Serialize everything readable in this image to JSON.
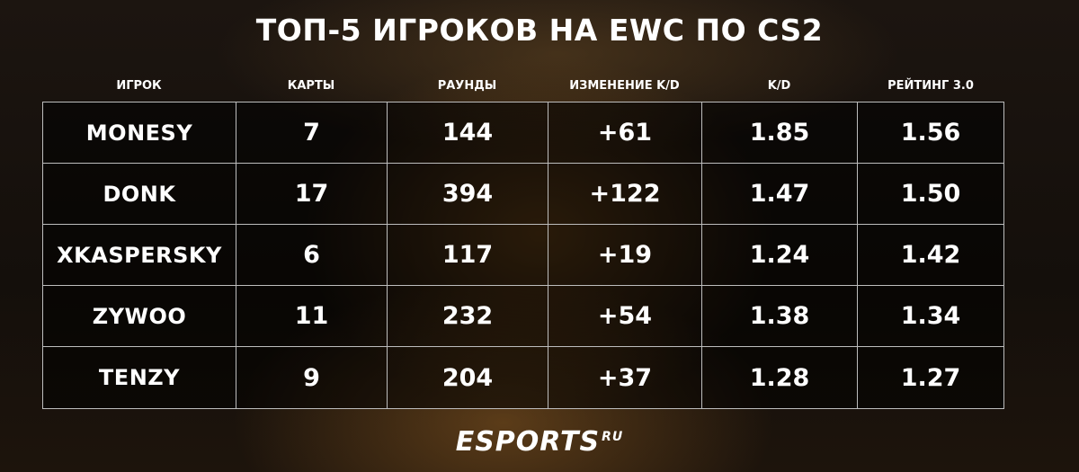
{
  "title": "ТОП-5 ИГРОКОВ НА EWC ПО CS2",
  "table": {
    "headers": [
      "ИГРОК",
      "КАРТЫ",
      "РАУНДЫ",
      "ИЗМЕНЕНИЕ K/D",
      "K/D",
      "РЕЙТИНГ 3.0"
    ],
    "rows": [
      [
        "MONESY",
        "7",
        "144",
        "+61",
        "1.85",
        "1.56"
      ],
      [
        "DONK",
        "17",
        "394",
        "+122",
        "1.47",
        "1.50"
      ],
      [
        "XKASPERSKY",
        "6",
        "117",
        "+19",
        "1.24",
        "1.42"
      ],
      [
        "ZYWOO",
        "11",
        "232",
        "+54",
        "1.38",
        "1.34"
      ],
      [
        "TENZY",
        "9",
        "204",
        "+37",
        "1.28",
        "1.27"
      ]
    ]
  },
  "logo": {
    "name": "ESPORTS",
    "suffix": "RU"
  }
}
